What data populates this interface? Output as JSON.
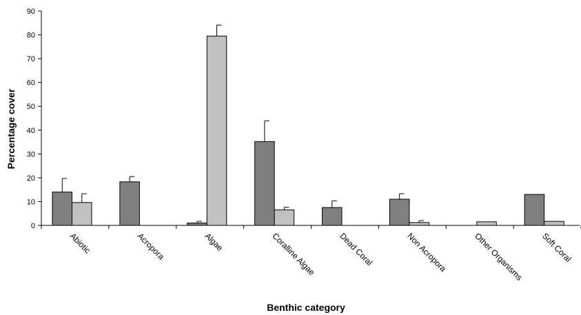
{
  "chart_data": {
    "type": "bar",
    "title": "",
    "xlabel": "Benthic category",
    "ylabel": "Percentage cover",
    "ylim": [
      0,
      90
    ],
    "yticks": [
      0,
      10,
      20,
      30,
      40,
      50,
      60,
      70,
      80,
      90
    ],
    "grid": false,
    "legend": "none",
    "categories": [
      "Abiotic",
      "Acropora",
      "Algae",
      "Coralline Algae",
      "Dead Coral",
      "Non Acropora",
      "Other Organisms",
      "Soft Coral"
    ],
    "series": [
      {
        "color": "#7f7f7f",
        "values": [
          14,
          18.3,
          1,
          35.2,
          7.5,
          11,
          0,
          13
        ],
        "errors": [
          5.7,
          2.2,
          0.7,
          8.7,
          2.8,
          2.3,
          0,
          0
        ]
      },
      {
        "color": "#c0c0c0",
        "values": [
          9.6,
          0,
          79.5,
          6.5,
          0,
          1.2,
          1.5,
          1.7
        ],
        "errors": [
          3.7,
          0,
          4.6,
          1.1,
          0,
          0.8,
          0,
          0
        ]
      }
    ]
  }
}
